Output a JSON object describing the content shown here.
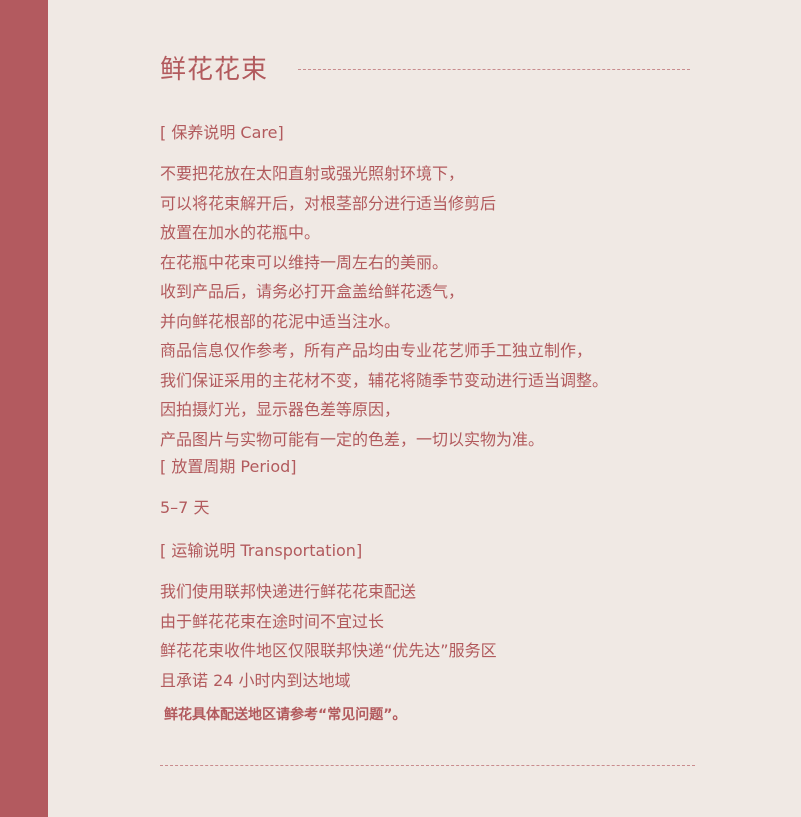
{
  "title": "鲜花花束",
  "care": {
    "heading": "[ 保养说明 Care]",
    "lines": [
      "不要把花放在太阳直射或强光照射环境下，",
      "可以将花束解开后，对根茎部分进行适当修剪后",
      "放置在加水的花瓶中。",
      "在花瓶中花束可以维持一周左右的美丽。",
      "收到产品后，请务必打开盒盖给鲜花透气，",
      "并向鲜花根部的花泥中适当注水。",
      "商品信息仅作参考，所有产品均由专业花艺师手工独立制作，",
      "我们保证采用的主花材不变，辅花将随季节变动进行适当调整。",
      "因拍摄灯光，显示器色差等原因，",
      "产品图片与实物可能有一定的色差，一切以实物为准。"
    ]
  },
  "period": {
    "heading": "[ 放置周期 Period]",
    "value": "5–7 天"
  },
  "transport": {
    "heading": "[ 运输说明 Transportation]",
    "lines": [
      "我们使用联邦快递进行鲜花花束配送",
      "由于鲜花花束在途时间不宜过长",
      "鲜花花束收件地区仅限联邦快递“优先达”服务区",
      "且承诺 24 小时内到达地域"
    ]
  },
  "note": "鲜花具体配送地区请参考“常见问题”。",
  "colors": {
    "background": "#f0e9e4",
    "accent_bar": "#b35a5f",
    "text": "#b25a5d"
  }
}
